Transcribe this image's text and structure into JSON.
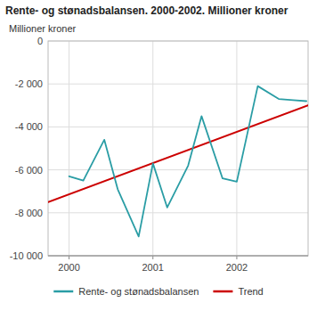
{
  "chart_data": {
    "type": "line",
    "title": "Rente- og stønadsbalansen. 2000-2002. Millioner kroner",
    "y_label": "Millioner kroner",
    "series": [
      {
        "name": "Rente- og stønadsbalansen",
        "color": "#2A9DA5",
        "x": [
          2000.0,
          2000.17,
          2000.42,
          2000.58,
          2000.83,
          2001.0,
          2001.17,
          2001.42,
          2001.58,
          2001.83,
          2002.0,
          2002.25,
          2002.5,
          2002.67,
          2002.83
        ],
        "values": [
          -6300,
          -6500,
          -4600,
          -6900,
          -9100,
          -5700,
          -7750,
          -5800,
          -3500,
          -6400,
          -6550,
          -2100,
          -2700,
          -2750,
          -2800
        ]
      },
      {
        "name": "Trend",
        "color": "#CC0000",
        "x": [
          1999.75,
          2002.85
        ],
        "values": [
          -7500,
          -3000
        ]
      }
    ],
    "xlim": [
      1999.75,
      2002.85
    ],
    "xticks": [
      2000,
      2001,
      2002
    ],
    "ylim": [
      -10000,
      0
    ],
    "yticks": [
      0,
      {
        "value": -2000,
        "label": "-2 000"
      },
      {
        "value": -4000,
        "label": "-4 000"
      },
      {
        "value": -6000,
        "label": "-6 000"
      },
      {
        "value": -8000,
        "label": "-8 000"
      },
      {
        "value": -10000,
        "label": "-10 000"
      }
    ],
    "grid": true,
    "legend": "bottom"
  }
}
